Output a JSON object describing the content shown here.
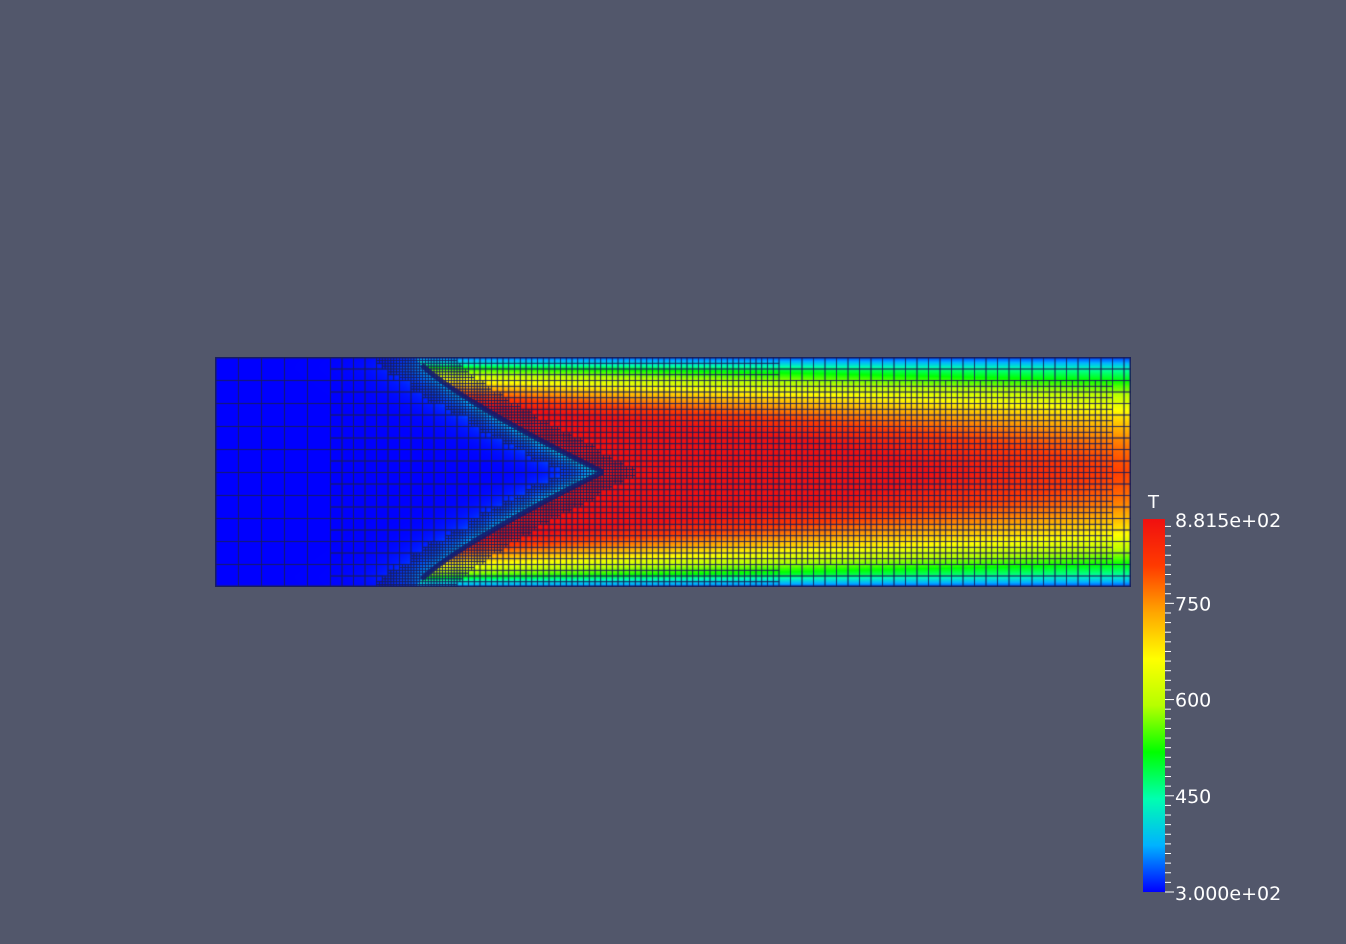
{
  "scene": {
    "background_color": "#52576b",
    "mesh_line_color": "#1a1f5a"
  },
  "scalar_bar": {
    "title": "T",
    "range": [
      300.0,
      881.5
    ],
    "max_label": "8.815e+02",
    "min_label": "3.000e+02",
    "tick_labels": [
      {
        "value": 750,
        "text": "750"
      },
      {
        "value": 600,
        "text": "600"
      },
      {
        "value": 450,
        "text": "450"
      }
    ],
    "colormap": "jet",
    "colormap_stops": [
      "#0000ff",
      "#00b2ff",
      "#00ffb0",
      "#00ff00",
      "#b6ff00",
      "#ffff00",
      "#ffa500",
      "#ff3a00",
      "#f01010"
    ]
  }
}
